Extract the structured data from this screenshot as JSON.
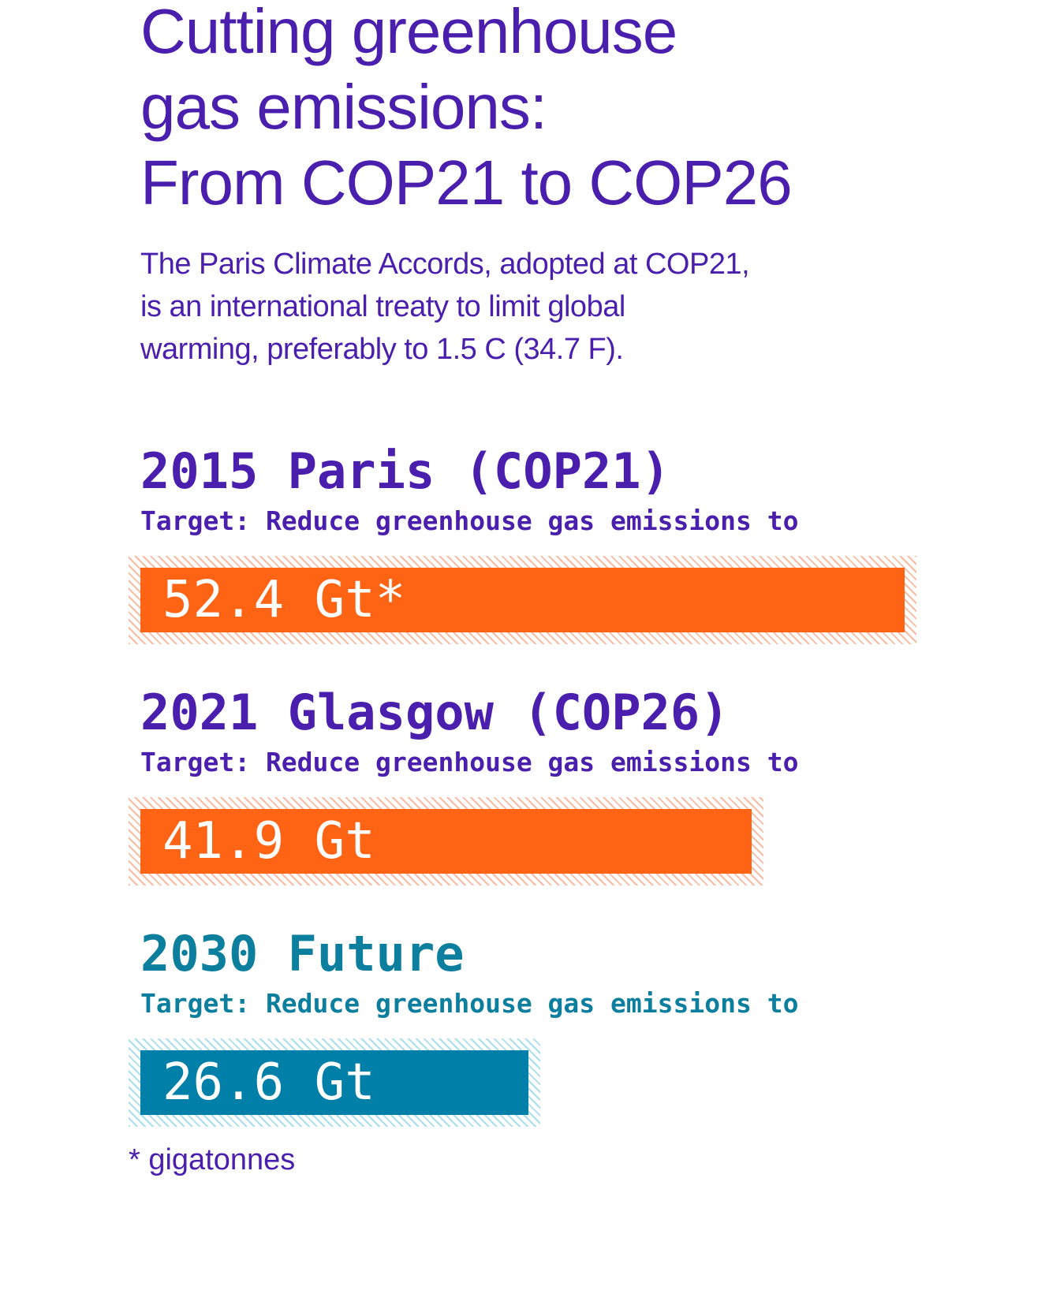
{
  "chart_data": {
    "type": "bar",
    "title": "Cutting greenhouse\ngas emissions:\nFrom COP21 to COP26",
    "subtitle": "The Paris Climate Accords, adopted at COP21,\nis an international treaty to limit global\nwarming, preferably to 1.5 C (34.7 F).",
    "categories": [
      "2015 Paris (COP21)",
      "2021 Glasgow (COP26)",
      "2030 Future"
    ],
    "category_notes": [
      "Target: Reduce greenhouse gas emissions to",
      "Target: Reduce greenhouse gas emissions to",
      "Target: Reduce greenhouse gas emissions to"
    ],
    "values": [
      52.4,
      41.9,
      26.6
    ],
    "value_labels": [
      "52.4 Gt*",
      "41.9 Gt",
      "26.6 Gt"
    ],
    "colors": [
      "#ff6314",
      "#ff6314",
      "#0080a8"
    ],
    "heading_colors": [
      "#4b1fae",
      "#4b1fae",
      "#0c7e9e"
    ],
    "footnote": "* gigatonnes"
  }
}
